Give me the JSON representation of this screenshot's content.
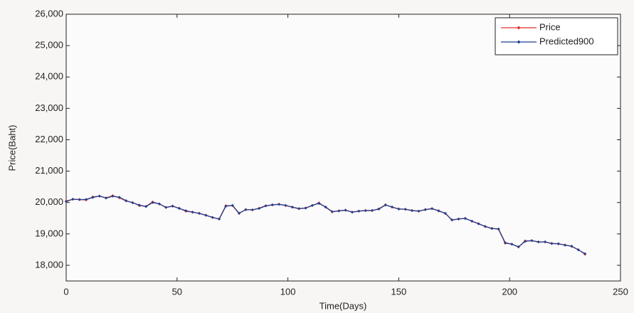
{
  "chart_data": {
    "type": "line",
    "xlabel": "Time(Days)",
    "ylabel": "Price(Baht)",
    "x": [
      0,
      3,
      6,
      9,
      12,
      15,
      18,
      21,
      24,
      27,
      30,
      33,
      36,
      39,
      42,
      45,
      48,
      51,
      54,
      57,
      60,
      63,
      66,
      69,
      72,
      75,
      78,
      81,
      84,
      87,
      90,
      93,
      96,
      99,
      102,
      105,
      108,
      111,
      114,
      117,
      120,
      123,
      126,
      129,
      132,
      135,
      138,
      141,
      144,
      147,
      150,
      153,
      156,
      159,
      162,
      165,
      168,
      171,
      174,
      177,
      180,
      183,
      186,
      189,
      192,
      195,
      198,
      201,
      204,
      207,
      210,
      213,
      216,
      219,
      222,
      225,
      228,
      231,
      234
    ],
    "series": [
      {
        "name": "Price",
        "color": "#e0302a",
        "values": [
          20050,
          20100,
          20100,
          20080,
          20180,
          20200,
          20150,
          20220,
          20150,
          20050,
          20000,
          19900,
          19880,
          20020,
          19950,
          19850,
          19880,
          19820,
          19720,
          19700,
          19650,
          19600,
          19520,
          19480,
          19900,
          19900,
          19650,
          19780,
          19760,
          19820,
          19900,
          19920,
          19950,
          19900,
          19860,
          19800,
          19830,
          19900,
          19990,
          19850,
          19700,
          19740,
          19750,
          19700,
          19720,
          19750,
          19740,
          19800,
          19930,
          19850,
          19800,
          19780,
          19750,
          19720,
          19780,
          19800,
          19740,
          19650,
          19450,
          19470,
          19500,
          19400,
          19330,
          19230,
          19180,
          19150,
          18700,
          18680,
          18580,
          18780,
          18780,
          18750,
          18740,
          18700,
          18680,
          18650,
          18600,
          18500,
          18350
        ]
      },
      {
        "name": "Predicted900",
        "color": "#1f3f8f",
        "values": [
          20030,
          20110,
          20090,
          20100,
          20160,
          20210,
          20140,
          20200,
          20170,
          20060,
          19990,
          19920,
          19870,
          20000,
          19960,
          19840,
          19890,
          19810,
          19740,
          19690,
          19660,
          19590,
          19530,
          19470,
          19880,
          19910,
          19660,
          19770,
          19770,
          19810,
          19890,
          19930,
          19940,
          19910,
          19850,
          19810,
          19820,
          19910,
          19970,
          19860,
          19710,
          19730,
          19760,
          19690,
          19730,
          19740,
          19750,
          19790,
          19920,
          19860,
          19790,
          19790,
          19740,
          19730,
          19770,
          19810,
          19730,
          19660,
          19440,
          19480,
          19490,
          19410,
          19320,
          19240,
          19170,
          19160,
          18720,
          18670,
          18590,
          18760,
          18790,
          18740,
          18750,
          18690,
          18690,
          18640,
          18610,
          18490,
          18370
        ]
      }
    ],
    "xlim": [
      0,
      250
    ],
    "xticks": [
      0,
      50,
      100,
      150,
      200,
      250
    ],
    "ylim": [
      17500,
      26000
    ],
    "yticks": [
      {
        "value": 18000,
        "label": "18,000"
      },
      {
        "value": 19000,
        "label": "19,000"
      },
      {
        "value": 20000,
        "label": "20,000"
      },
      {
        "value": 21000,
        "label": "21,000"
      },
      {
        "value": 22000,
        "label": "22,000"
      },
      {
        "value": 23000,
        "label": "23,000"
      },
      {
        "value": 24000,
        "label": "24,000"
      },
      {
        "value": 25000,
        "label": "25,000"
      },
      {
        "value": 26000,
        "label": "26,000"
      }
    ],
    "legend": "top-right"
  }
}
